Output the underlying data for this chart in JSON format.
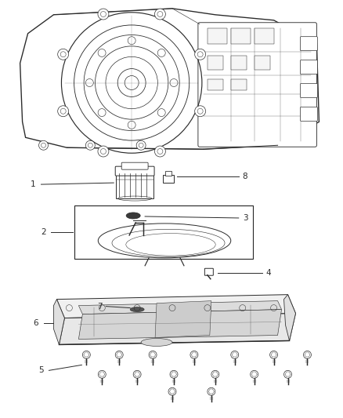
{
  "bg_color": "#ffffff",
  "line_color": "#2a2a2a",
  "label_color": "#2a2a2a",
  "figsize": [
    4.38,
    5.33
  ],
  "dpi": 100,
  "font_size": 7.5,
  "lw": 0.7
}
